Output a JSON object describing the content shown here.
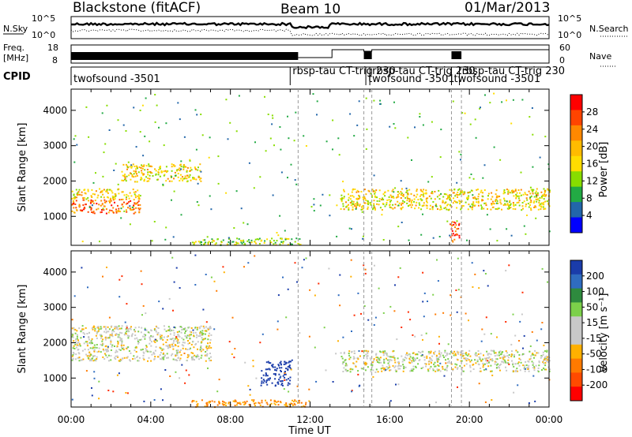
{
  "header": {
    "station": "Blackstone (fitACF)",
    "beam": "Beam 10",
    "date": "01/Mar/2013"
  },
  "top_panels": {
    "nsky_label": "N.Sky",
    "nsky_ticks": [
      "10^5",
      "10^0"
    ],
    "nsky_right_ticks": [
      "10^5",
      "10^0"
    ],
    "nsearch_label": "N.Search",
    "freq_label": "Freq.",
    "freq_unit": "[MHz]",
    "freq_ticks": [
      "18",
      "8"
    ],
    "nave_ticks": [
      "60",
      "0"
    ],
    "nave_label": "Nave",
    "cpid_label": "CPID",
    "cpid_segments": [
      {
        "label": "twofsound -3501",
        "start_hour": 0
      },
      {
        "label": "rbsp-tau CT-trig 230",
        "start_hour": 11
      },
      {
        "label": "twofsound -3501",
        "start_hour": 14.8
      },
      {
        "label": "rbsp-tau CT-trig 230",
        "start_hour": 15
      },
      {
        "label": "twofsound -3501",
        "start_hour": 19.1
      },
      {
        "label": "rbsp-tau CT-trig 230",
        "start_hour": 19.5
      }
    ]
  },
  "axes": {
    "ylabel": "Slant Range [km]",
    "xlabel": "Time UT",
    "x_ticks": [
      "00:00",
      "04:00",
      "08:00",
      "12:00",
      "16:00",
      "20:00",
      "00:00"
    ],
    "y_ticks": [
      "1000",
      "2000",
      "3000",
      "4000"
    ]
  },
  "colorbars": {
    "power": {
      "label": "Power [dB]",
      "ticks": [
        "28",
        "24",
        "20",
        "16",
        "12",
        "8",
        "4"
      ],
      "colors": [
        "#ff0000",
        "#ff4400",
        "#ff8800",
        "#ffbb00",
        "#ffdd00",
        "#88dd00",
        "#22aa44",
        "#2266aa",
        "#0000ff"
      ]
    },
    "velocity": {
      "label": "Velocity [m s⁻¹]",
      "ticks": [
        "200",
        "100",
        "50",
        "15",
        "-15",
        "-50",
        "-100",
        "-200"
      ],
      "colors": [
        "#1a3caa",
        "#2f6cc0",
        "#2e8a3e",
        "#7cd04a",
        "#c8c8c8",
        "#c8c8c8",
        "#ffb000",
        "#ff7a00",
        "#ff4a00",
        "#ff0000"
      ]
    }
  },
  "chart_data": [
    {
      "type": "heatmap",
      "title": "Power",
      "xlabel": "Time UT",
      "ylabel": "Slant Range [km]",
      "xlim": [
        0,
        24
      ],
      "ylim": [
        180,
        4600
      ],
      "zlabel": "Power [dB]",
      "zlim": [
        0,
        30
      ],
      "features": [
        {
          "hours": [
            0,
            3.5
          ],
          "range_km": [
            1100,
            1500
          ],
          "power_db": 24
        },
        {
          "hours": [
            0,
            3.5
          ],
          "range_km": [
            1500,
            1800
          ],
          "power_db": 16
        },
        {
          "hours": [
            2.5,
            6.5
          ],
          "range_km": [
            2000,
            2500
          ],
          "power_db": 16
        },
        {
          "hours": [
            6,
            11.5
          ],
          "range_km": [
            200,
            400
          ],
          "power_db": 12
        },
        {
          "hours": [
            13.5,
            24
          ],
          "range_km": [
            1200,
            1800
          ],
          "power_db": 16
        },
        {
          "hours": [
            19,
            19.5
          ],
          "range_km": [
            300,
            900
          ],
          "power_db": 28
        }
      ]
    },
    {
      "type": "heatmap",
      "title": "Velocity",
      "xlabel": "Time UT",
      "ylabel": "Slant Range [km]",
      "xlim": [
        0,
        24
      ],
      "ylim": [
        180,
        4600
      ],
      "zlabel": "Velocity [m s⁻¹]",
      "zlim": [
        -200,
        200
      ],
      "features": [
        {
          "hours": [
            0,
            7
          ],
          "range_km": [
            1500,
            2500
          ],
          "velocity": 0
        },
        {
          "hours": [
            6,
            12
          ],
          "range_km": [
            200,
            400
          ],
          "velocity": -50
        },
        {
          "hours": [
            13.5,
            24
          ],
          "range_km": [
            1200,
            1800
          ],
          "velocity": 0
        },
        {
          "hours": [
            9.5,
            11
          ],
          "range_km": [
            800,
            1500
          ],
          "velocity": 150
        }
      ]
    }
  ]
}
